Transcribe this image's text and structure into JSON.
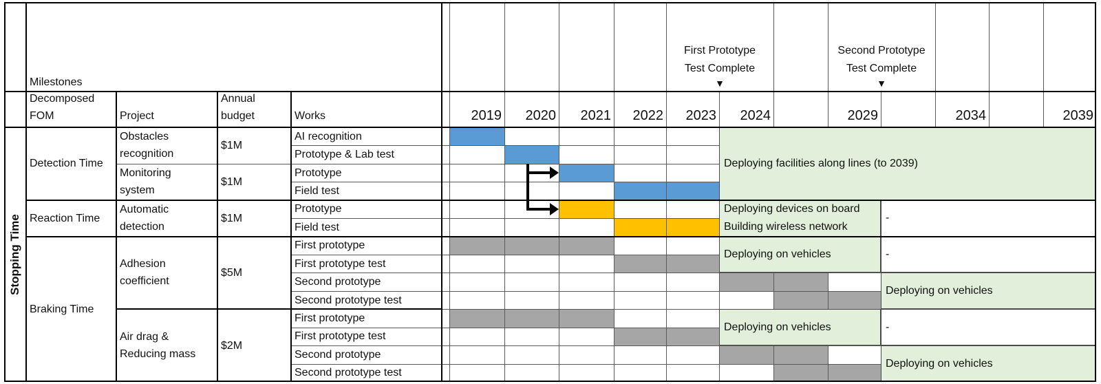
{
  "left_axis": {
    "label": "Stopping Time"
  },
  "milestones_row": {
    "label": "Milestones",
    "marker_glyph": "▼",
    "markers": [
      {
        "text": "First Prototype\nTest Complete",
        "cols": [
          4,
          5
        ]
      },
      {
        "text": "Second Prototype\nTest Complete",
        "cols": [
          7,
          8
        ]
      }
    ]
  },
  "header": {
    "fom": "Decomposed\nFOM",
    "project": "Project",
    "budget": "Annual\nbudget",
    "works": "Works"
  },
  "years": [
    "2019",
    "2020",
    "2021",
    "2022",
    "2023",
    "2024",
    "",
    "2029",
    "",
    "2034",
    "",
    "2039"
  ],
  "fom_groups": [
    {
      "label": "Detection Time",
      "rows": [
        0,
        3
      ]
    },
    {
      "label": "Reaction Time",
      "rows": [
        4,
        5
      ]
    },
    {
      "label": "Braking Time",
      "rows": [
        6,
        13
      ]
    }
  ],
  "projects": [
    {
      "name": "Obstacles\nrecognition",
      "budget": "$1M",
      "rows": [
        0,
        1
      ]
    },
    {
      "name": "Monitoring\nsystem",
      "budget": "$1M",
      "rows": [
        2,
        3
      ]
    },
    {
      "name": "Automatic\ndetection",
      "budget": "$1M",
      "rows": [
        4,
        5
      ]
    },
    {
      "name": "Adhesion\ncoefficient",
      "budget": "$5M",
      "rows": [
        6,
        9
      ]
    },
    {
      "name": "Air drag &\nReducing mass",
      "budget": "$2M",
      "rows": [
        10,
        13
      ]
    }
  ],
  "works": [
    "AI recognition",
    "Prototype & Lab test",
    "Prototype",
    "Field test",
    "Prototype",
    "Field test",
    "First prototype",
    "First prototype test",
    "Second prototype",
    "Second prototype test",
    "First prototype",
    "First prototype test",
    "Second prototype",
    "Second prototype test"
  ],
  "colors": {
    "blue": "#5B9BD5",
    "orange": "#FFC000",
    "gray": "#A6A6A6",
    "green_fill": "#E2EFDA",
    "grid": "#595959",
    "border": "#000000"
  },
  "chart_data": {
    "type": "gantt",
    "columns": [
      "2019",
      "2020",
      "2021",
      "2022",
      "2023",
      "2024",
      "2025-2028",
      "2029",
      "2030-2033",
      "2034",
      "2035-2038",
      "2039"
    ],
    "milestones": [
      {
        "label": "First Prototype Test Complete",
        "at_end_of_year": 2023
      },
      {
        "label": "Second Prototype Test Complete",
        "at_end_of_year": 2029
      }
    ],
    "bars": [
      {
        "row": 0,
        "label": "AI recognition",
        "project": "Obstacles recognition",
        "cols": [
          0,
          0
        ],
        "years": "2019",
        "color": "blue"
      },
      {
        "row": 1,
        "label": "Prototype & Lab test",
        "project": "Obstacles recognition",
        "cols": [
          1,
          1
        ],
        "years": "2020",
        "color": "blue"
      },
      {
        "row": 2,
        "label": "Prototype",
        "project": "Monitoring system",
        "cols": [
          2,
          2
        ],
        "years": "2021",
        "color": "blue"
      },
      {
        "row": 3,
        "label": "Field test",
        "project": "Monitoring system",
        "cols": [
          3,
          4
        ],
        "years": "2022-2023",
        "color": "blue"
      },
      {
        "row": 4,
        "label": "Prototype",
        "project": "Automatic detection",
        "cols": [
          2,
          2
        ],
        "years": "2021",
        "color": "orange"
      },
      {
        "row": 5,
        "label": "Field test",
        "project": "Automatic detection",
        "cols": [
          3,
          4
        ],
        "years": "2022-2023",
        "color": "orange"
      },
      {
        "row": 6,
        "label": "First prototype",
        "project": "Adhesion coefficient",
        "cols": [
          0,
          2
        ],
        "years": "2019-2021",
        "color": "gray"
      },
      {
        "row": 7,
        "label": "First prototype test",
        "project": "Adhesion coefficient",
        "cols": [
          3,
          4
        ],
        "years": "2022-2023",
        "color": "gray"
      },
      {
        "row": 8,
        "label": "Second prototype",
        "project": "Adhesion coefficient",
        "cols": [
          5,
          6
        ],
        "years": "2024-2028",
        "color": "gray"
      },
      {
        "row": 9,
        "label": "Second prototype test",
        "project": "Adhesion coefficient",
        "cols": [
          6,
          7
        ],
        "years": "2025-2029",
        "color": "gray"
      },
      {
        "row": 10,
        "label": "First prototype",
        "project": "Air drag & Reducing mass",
        "cols": [
          0,
          2
        ],
        "years": "2019-2021",
        "color": "gray"
      },
      {
        "row": 11,
        "label": "First prototype test",
        "project": "Air drag & Reducing mass",
        "cols": [
          3,
          4
        ],
        "years": "2022-2023",
        "color": "gray"
      },
      {
        "row": 12,
        "label": "Second prototype",
        "project": "Air drag & Reducing mass",
        "cols": [
          5,
          6
        ],
        "years": "2024-2028",
        "color": "gray"
      },
      {
        "row": 13,
        "label": "Second prototype test",
        "project": "Air drag & Reducing mass",
        "cols": [
          6,
          7
        ],
        "years": "2025-2029",
        "color": "gray"
      }
    ],
    "deployment_notes": [
      {
        "rows": [
          0,
          3
        ],
        "cols": [
          5,
          11
        ],
        "text": "Deploying facilities along lines (to 2039)"
      },
      {
        "rows": [
          4,
          5
        ],
        "cols": [
          5,
          7
        ],
        "text": "Deploying devices on board\nBuilding wireless network"
      },
      {
        "rows": [
          4,
          5
        ],
        "cols": [
          8,
          11
        ],
        "text": "-"
      },
      {
        "rows": [
          6,
          7
        ],
        "cols": [
          5,
          7
        ],
        "text": "Deploying on vehicles"
      },
      {
        "rows": [
          6,
          7
        ],
        "cols": [
          8,
          11
        ],
        "text": "-"
      },
      {
        "rows": [
          8,
          9
        ],
        "cols": [
          8,
          11
        ],
        "text": "Deploying on vehicles"
      },
      {
        "rows": [
          10,
          11
        ],
        "cols": [
          5,
          7
        ],
        "text": "Deploying on vehicles"
      },
      {
        "rows": [
          10,
          11
        ],
        "cols": [
          8,
          11
        ],
        "text": "-"
      },
      {
        "rows": [
          12,
          13
        ],
        "cols": [
          8,
          11
        ],
        "text": "Deploying on vehicles"
      }
    ],
    "dependency_arrows": {
      "from_row": 1,
      "to_rows": [
        2,
        4
      ]
    }
  }
}
